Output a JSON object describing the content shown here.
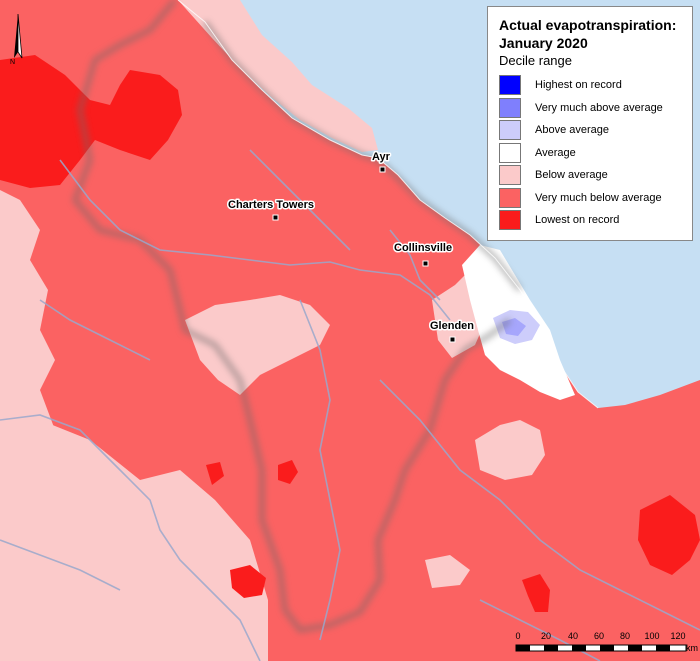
{
  "legend": {
    "title_line1": "Actual evapotranspiration:",
    "title_line2": "January 2020",
    "subtitle": "Decile range",
    "items": [
      {
        "label": "Highest on record",
        "color": "#0000ff"
      },
      {
        "label": "Very much above average",
        "color": "#7f7ffd"
      },
      {
        "label": "Above average",
        "color": "#cdcdfb"
      },
      {
        "label": "Average",
        "color": "#ffffff"
      },
      {
        "label": "Below average",
        "color": "#fbcaca"
      },
      {
        "label": "Very much below average",
        "color": "#fb6262"
      },
      {
        "label": "Lowest on record",
        "color": "#fa1c1c"
      }
    ]
  },
  "towns": {
    "ayr": "Ayr",
    "charters_towers": "Charters Towers",
    "collinsville": "Collinsville",
    "glenden": "Glenden"
  },
  "scale_bar": {
    "ticks": [
      "0",
      "20",
      "40",
      "60",
      "80",
      "100",
      "120"
    ],
    "unit": "km"
  },
  "north_arrow": {
    "label": "N"
  },
  "colors": {
    "ocean": "#c6dff3",
    "land_base": "#fb6262",
    "rivers": "#9aa8cc",
    "boundary_shadow": "#6a6a6a"
  }
}
